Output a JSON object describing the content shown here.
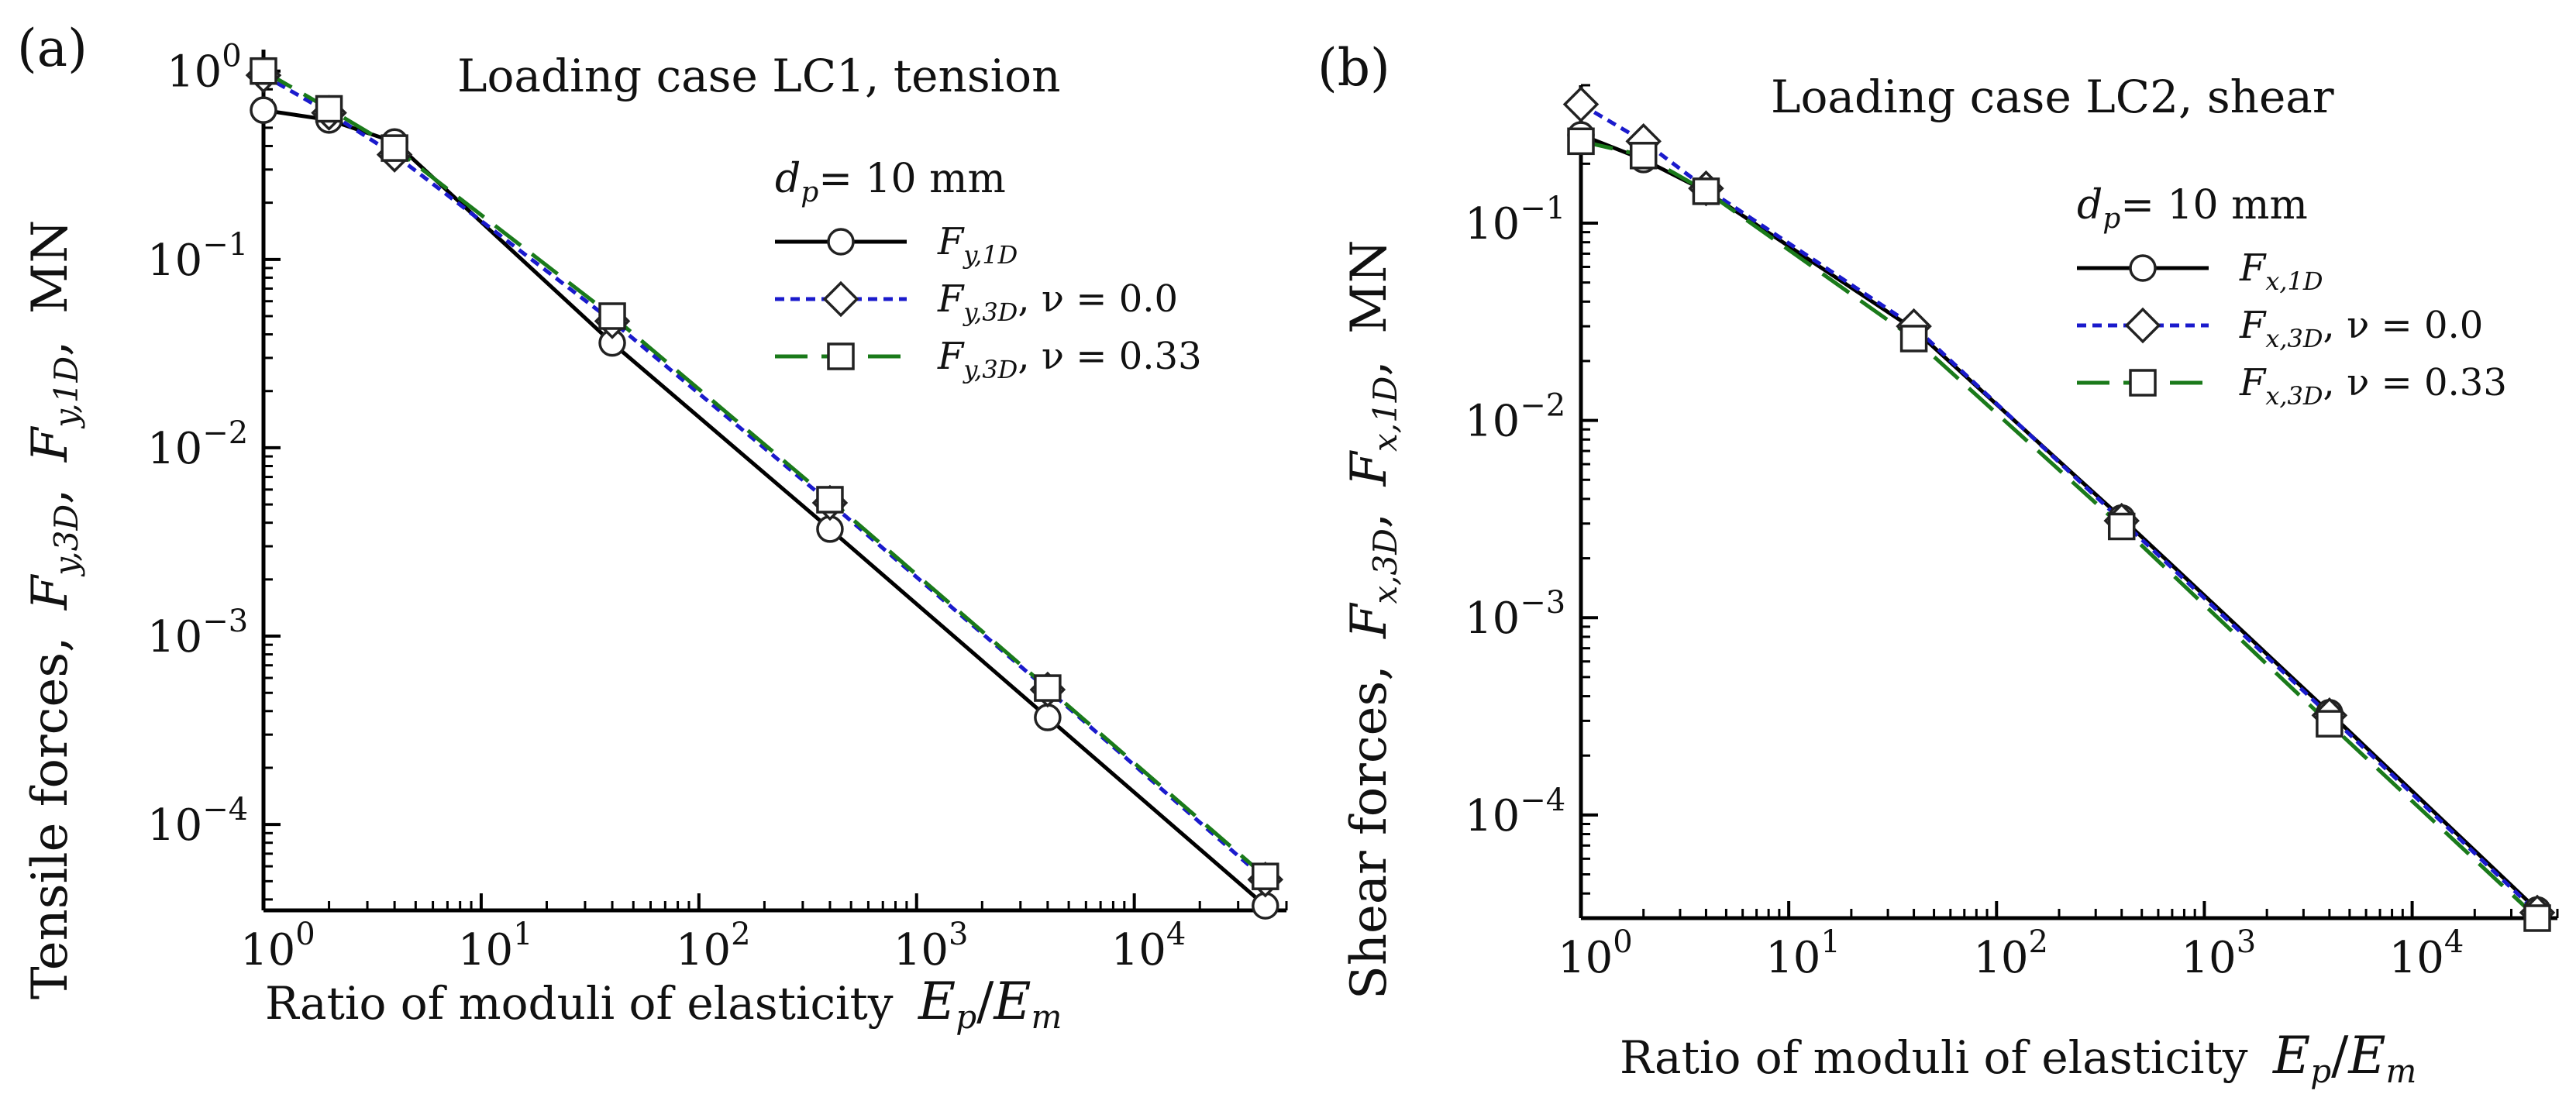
{
  "chart_data": [
    {
      "type": "line",
      "panel_label": "(a)",
      "title": "Loading case LC1, tension",
      "xlabel": "Ratio of moduli of elasticity",
      "xlabel_math": "E_p/E_m",
      "ylabel": "Tensile forces, F_y,3D, F_y,1D, MN",
      "ylabel_plain": "Tensile forces,",
      "ylabel_unit": "MN",
      "xscale": "log",
      "yscale": "log",
      "xlim": [
        1,
        50000
      ],
      "ylim": [
        3.5e-05,
        1.3
      ],
      "xticks": [
        1,
        10,
        100,
        1000,
        10000
      ],
      "yticks": [
        1,
        0.1,
        0.01,
        0.001,
        0.0001
      ],
      "tick_bases": [
        "10",
        "10",
        "10",
        "10",
        "10"
      ],
      "x_tick_exponents": [
        "0",
        "1",
        "2",
        "3",
        "4"
      ],
      "y_tick_exponents": [
        "0",
        "−1",
        "−2",
        "−3",
        "−4"
      ],
      "legend_heading": "d_p = 10 mm",
      "legend_heading_value": "= 10 mm",
      "legend_placement": "top-right",
      "x": [
        1,
        2,
        4,
        40,
        400,
        4000,
        40000
      ],
      "series": [
        {
          "name": "F_y,1D",
          "label_main": "F",
          "label_sub": "y,1D",
          "label_suffix": "",
          "style": "solid",
          "color": "#000000",
          "marker": "circle",
          "values": [
            0.62,
            0.55,
            0.42,
            0.036,
            0.0037,
            0.00037,
            3.7e-05
          ]
        },
        {
          "name": "F_y,3D, ν = 0.0",
          "label_main": "F",
          "label_sub": "y,3D",
          "label_suffix": ", ν = 0.0",
          "style": "dotted",
          "color": "#1a1acc",
          "marker": "diamond",
          "values": [
            0.95,
            0.6,
            0.36,
            0.047,
            0.0051,
            0.00052,
            5.1e-05
          ]
        },
        {
          "name": "F_y,3D, ν = 0.33",
          "label_main": "F",
          "label_sub": "y,3D",
          "label_suffix": ", ν = 0.33",
          "style": "dashed",
          "color": "#1a7a1a",
          "marker": "square",
          "values": [
            1.0,
            0.63,
            0.39,
            0.05,
            0.0053,
            0.00053,
            5.3e-05
          ]
        }
      ]
    },
    {
      "type": "line",
      "panel_label": "(b)",
      "title": "Loading case LC2, shear",
      "xlabel": "Ratio of moduli of elasticity",
      "xlabel_math": "E_p/E_m",
      "ylabel": "Shear forces, F_x,3D, F_x,1D, MN",
      "ylabel_plain": "Shear forces,",
      "ylabel_unit": "MN",
      "xscale": "log",
      "yscale": "log",
      "xlim": [
        1,
        50000
      ],
      "ylim": [
        3e-05,
        0.5
      ],
      "xticks": [
        1,
        10,
        100,
        1000,
        10000
      ],
      "yticks": [
        0.1,
        0.01,
        0.001,
        0.0001
      ],
      "tick_bases": [
        "10",
        "10",
        "10",
        "10"
      ],
      "x_tick_exponents": [
        "0",
        "1",
        "2",
        "3",
        "4"
      ],
      "y_tick_exponents": [
        "−1",
        "−2",
        "−3",
        "−4"
      ],
      "legend_heading": "d_p = 10 mm",
      "legend_heading_value": "= 10 mm",
      "legend_placement": "top-right",
      "x": [
        1,
        2,
        4,
        40,
        400,
        4000,
        40000
      ],
      "series": [
        {
          "name": "F_x,1D",
          "label_main": "F",
          "label_sub": "x,1D",
          "label_suffix": "",
          "style": "solid",
          "color": "#000000",
          "marker": "circle",
          "values": [
            0.28,
            0.21,
            0.145,
            0.029,
            0.0032,
            0.00033,
            3.3e-05
          ]
        },
        {
          "name": "F_x,3D, ν = 0.0",
          "label_main": "F",
          "label_sub": "x,3D",
          "label_suffix": ", ν = 0.0",
          "style": "dotted",
          "color": "#1a1acc",
          "marker": "diamond",
          "values": [
            0.4,
            0.26,
            0.15,
            0.03,
            0.0031,
            0.00032,
            3.2e-05
          ]
        },
        {
          "name": "F_x,3D, ν = 0.33",
          "label_main": "F",
          "label_sub": "x,3D",
          "label_suffix": ", ν = 0.33",
          "style": "dashed",
          "color": "#1a7a1a",
          "marker": "square",
          "values": [
            0.26,
            0.22,
            0.145,
            0.026,
            0.0029,
            0.00029,
            3e-05
          ]
        }
      ]
    }
  ]
}
